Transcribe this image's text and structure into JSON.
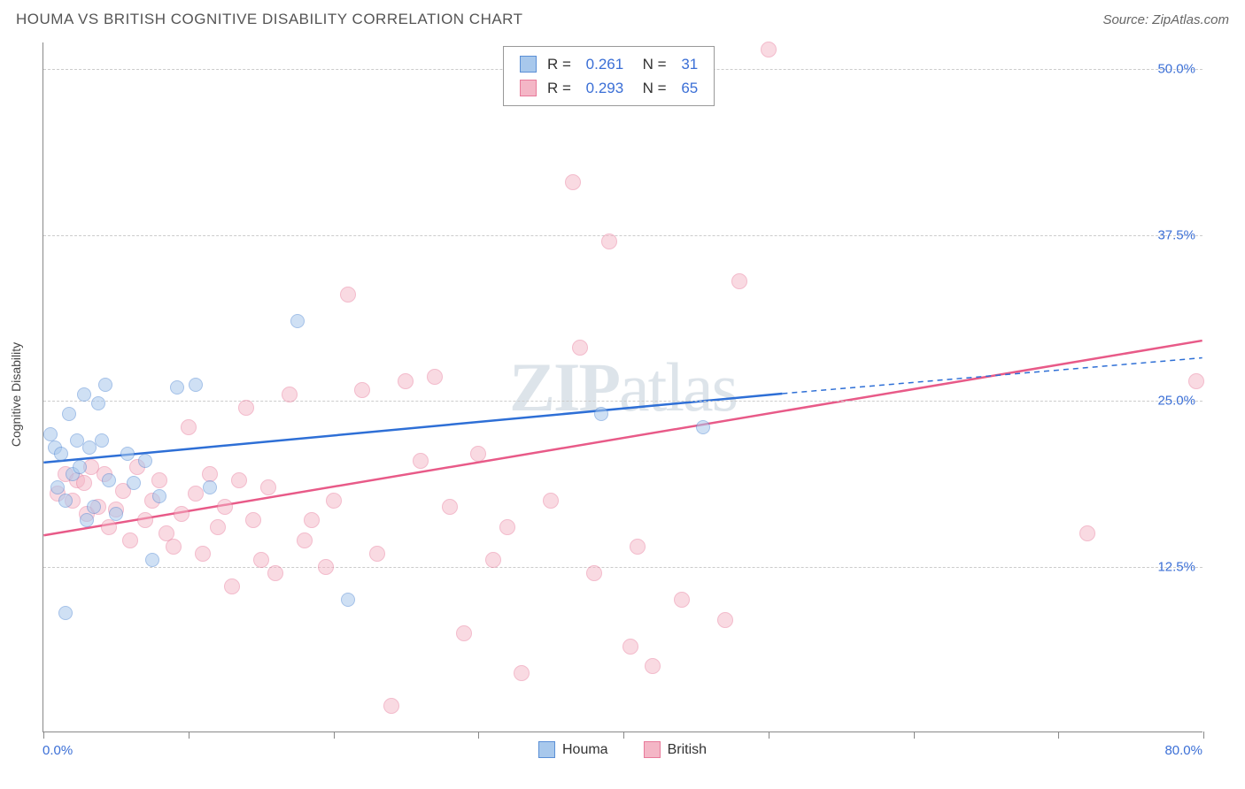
{
  "title": "HOUMA VS BRITISH COGNITIVE DISABILITY CORRELATION CHART",
  "source": "Source: ZipAtlas.com",
  "ylabel": "Cognitive Disability",
  "watermark": {
    "bold": "ZIP",
    "rest": "atlas"
  },
  "xlim": [
    0,
    80
  ],
  "ylim": [
    0,
    52
  ],
  "x_origin_label": "0.0%",
  "x_max_label": "80.0%",
  "x_ticks": [
    0,
    10,
    20,
    30,
    40,
    50,
    60,
    70,
    80
  ],
  "y_gridlines": [
    {
      "v": 12.5,
      "label": "12.5%"
    },
    {
      "v": 25.0,
      "label": "25.0%"
    },
    {
      "v": 37.5,
      "label": "37.5%"
    },
    {
      "v": 50.0,
      "label": "50.0%"
    }
  ],
  "series": {
    "houma": {
      "label": "Houma",
      "R": "0.261",
      "N": "31",
      "fill": "#a8c8ec",
      "stroke": "#5b8fd6",
      "fill_opacity": 0.55,
      "line_color": "#2e6fd6",
      "line_solid": {
        "x1": 0,
        "y1": 20.3,
        "x2": 51,
        "y2": 25.5
      },
      "line_dashed": {
        "x1": 51,
        "y1": 25.5,
        "x2": 80,
        "y2": 28.2
      },
      "marker_r": 8,
      "points": [
        [
          0.5,
          22.5
        ],
        [
          0.8,
          21.5
        ],
        [
          1.2,
          21.0
        ],
        [
          1.0,
          18.5
        ],
        [
          1.5,
          17.5
        ],
        [
          1.8,
          24.0
        ],
        [
          2.0,
          19.5
        ],
        [
          2.3,
          22.0
        ],
        [
          2.5,
          20.0
        ],
        [
          2.8,
          25.5
        ],
        [
          3.0,
          16.0
        ],
        [
          3.2,
          21.5
        ],
        [
          3.5,
          17.0
        ],
        [
          4.0,
          22.0
        ],
        [
          4.3,
          26.2
        ],
        [
          4.5,
          19.0
        ],
        [
          5.0,
          16.5
        ],
        [
          5.8,
          21.0
        ],
        [
          6.2,
          18.8
        ],
        [
          7.0,
          20.5
        ],
        [
          7.5,
          13.0
        ],
        [
          8.0,
          17.8
        ],
        [
          9.2,
          26.0
        ],
        [
          10.5,
          26.2
        ],
        [
          11.5,
          18.5
        ],
        [
          17.5,
          31.0
        ],
        [
          21.0,
          10.0
        ],
        [
          38.5,
          24.0
        ],
        [
          45.5,
          23.0
        ],
        [
          1.5,
          9.0
        ],
        [
          3.8,
          24.8
        ]
      ]
    },
    "british": {
      "label": "British",
      "R": "0.293",
      "N": "65",
      "fill": "#f4b6c6",
      "stroke": "#e87a9a",
      "fill_opacity": 0.5,
      "line_color": "#e85a88",
      "line_solid": {
        "x1": 0,
        "y1": 14.8,
        "x2": 80,
        "y2": 29.5
      },
      "marker_r": 9,
      "points": [
        [
          1.0,
          18.0
        ],
        [
          1.5,
          19.5
        ],
        [
          2.0,
          17.5
        ],
        [
          2.3,
          19.0
        ],
        [
          2.8,
          18.8
        ],
        [
          3.0,
          16.5
        ],
        [
          3.3,
          20.0
        ],
        [
          3.8,
          17.0
        ],
        [
          4.2,
          19.5
        ],
        [
          4.5,
          15.5
        ],
        [
          5.0,
          16.8
        ],
        [
          5.5,
          18.2
        ],
        [
          6.0,
          14.5
        ],
        [
          6.5,
          20.0
        ],
        [
          7.0,
          16.0
        ],
        [
          7.5,
          17.5
        ],
        [
          8.0,
          19.0
        ],
        [
          8.5,
          15.0
        ],
        [
          9.0,
          14.0
        ],
        [
          9.5,
          16.5
        ],
        [
          10.0,
          23.0
        ],
        [
          10.5,
          18.0
        ],
        [
          11.0,
          13.5
        ],
        [
          11.5,
          19.5
        ],
        [
          12.0,
          15.5
        ],
        [
          12.5,
          17.0
        ],
        [
          13.0,
          11.0
        ],
        [
          13.5,
          19.0
        ],
        [
          14.0,
          24.5
        ],
        [
          14.5,
          16.0
        ],
        [
          15.0,
          13.0
        ],
        [
          15.5,
          18.5
        ],
        [
          16.0,
          12.0
        ],
        [
          17.0,
          25.5
        ],
        [
          18.0,
          14.5
        ],
        [
          18.5,
          16.0
        ],
        [
          19.5,
          12.5
        ],
        [
          20.0,
          17.5
        ],
        [
          21.0,
          33.0
        ],
        [
          22.0,
          25.8
        ],
        [
          23.0,
          13.5
        ],
        [
          24.0,
          2.0
        ],
        [
          25.0,
          26.5
        ],
        [
          26.0,
          20.5
        ],
        [
          27.0,
          26.8
        ],
        [
          28.0,
          17.0
        ],
        [
          29.0,
          7.5
        ],
        [
          30.0,
          21.0
        ],
        [
          31.0,
          13.0
        ],
        [
          32.0,
          15.5
        ],
        [
          33.0,
          4.5
        ],
        [
          35.0,
          17.5
        ],
        [
          36.5,
          41.5
        ],
        [
          37.0,
          29.0
        ],
        [
          38.0,
          12.0
        ],
        [
          39.0,
          37.0
        ],
        [
          40.5,
          6.5
        ],
        [
          41.0,
          14.0
        ],
        [
          42.0,
          5.0
        ],
        [
          44.0,
          10.0
        ],
        [
          47.0,
          8.5
        ],
        [
          48.0,
          34.0
        ],
        [
          50.0,
          51.5
        ],
        [
          72.0,
          15.0
        ],
        [
          79.5,
          26.5
        ]
      ]
    }
  }
}
